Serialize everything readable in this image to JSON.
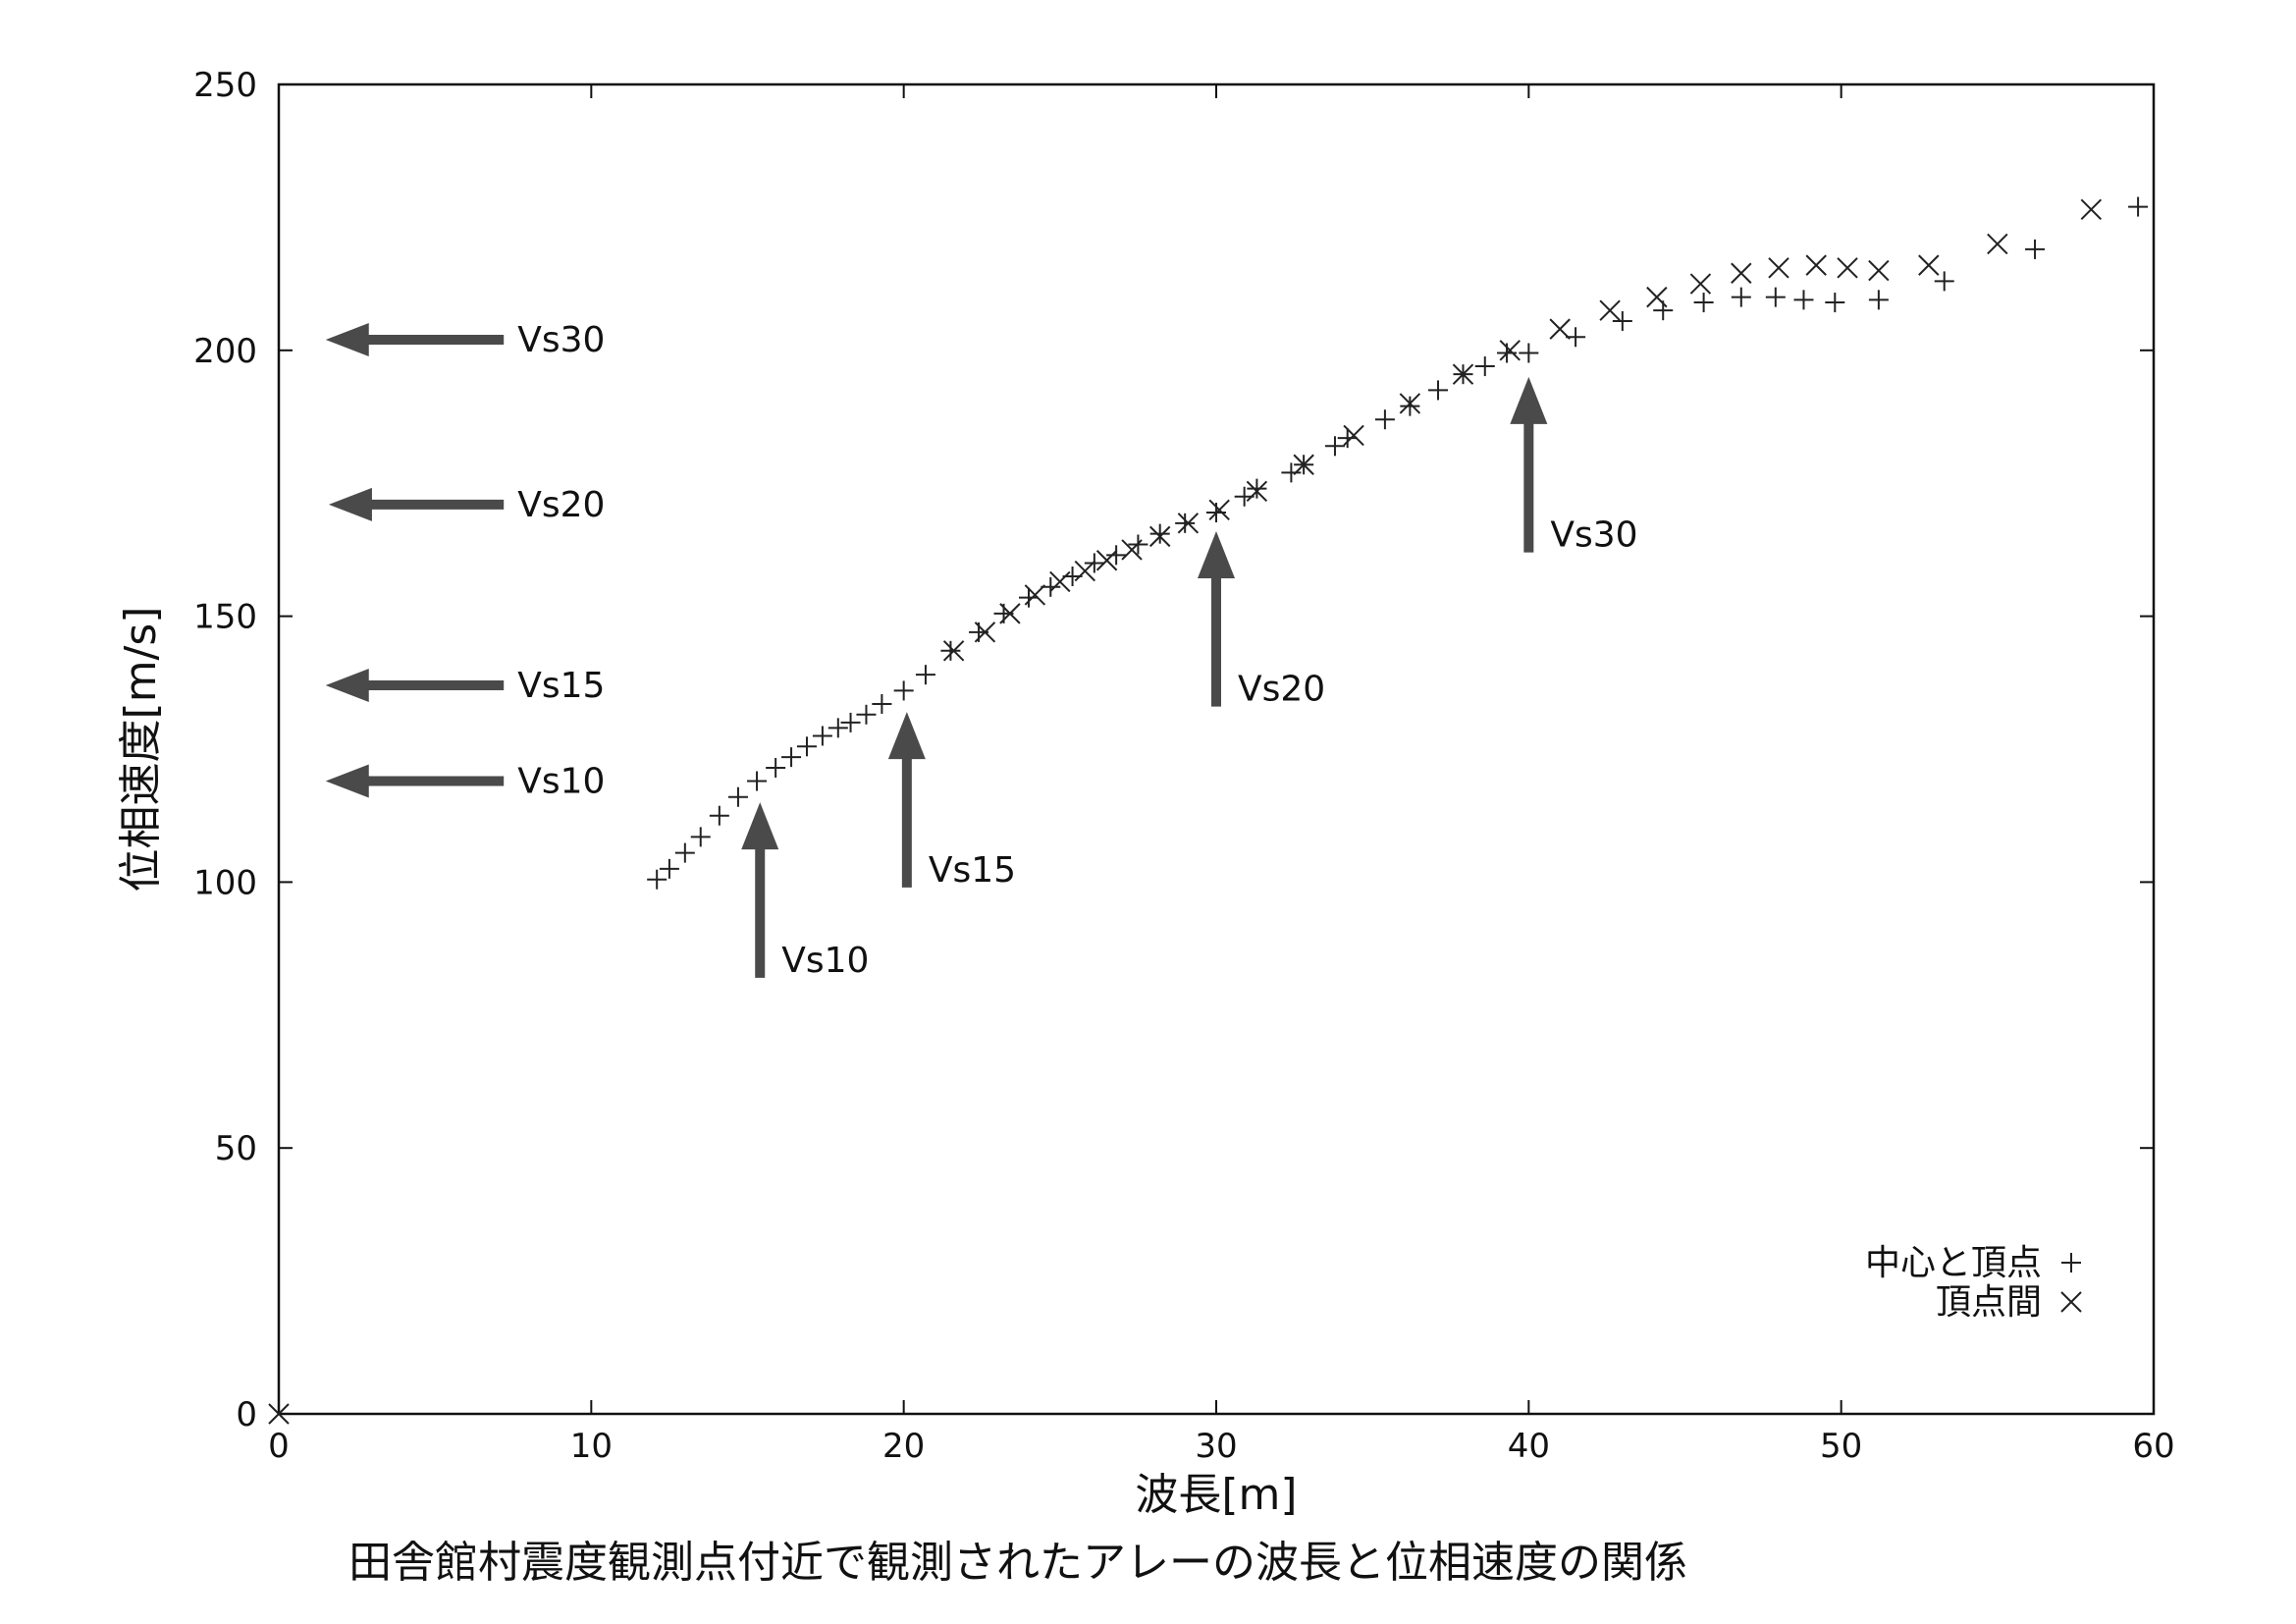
{
  "chart_data": {
    "type": "scatter",
    "xlabel": "波長[m]",
    "ylabel": "位相速度[m/s]",
    "caption": "田舎館村震度観測点付近で観測されたアレーの波長と位相速度の関係",
    "xlim": [
      0,
      60
    ],
    "ylim": [
      0,
      250
    ],
    "x_ticks": [
      "0",
      "10",
      "20",
      "30",
      "40",
      "50",
      "60"
    ],
    "y_ticks": [
      "0",
      "50",
      "100",
      "150",
      "200",
      "250"
    ],
    "grid": false,
    "legend_position": "bottom-right",
    "series": [
      {
        "name": "中心と頂点",
        "marker": "+",
        "points": [
          [
            12.1,
            100.5
          ],
          [
            12.5,
            102.5
          ],
          [
            13.0,
            105.5
          ],
          [
            13.5,
            108.5
          ],
          [
            14.1,
            112.5
          ],
          [
            14.7,
            116.0
          ],
          [
            15.3,
            119.0
          ],
          [
            15.9,
            121.5
          ],
          [
            16.4,
            123.5
          ],
          [
            16.9,
            125.5
          ],
          [
            17.4,
            127.5
          ],
          [
            17.9,
            129.0
          ],
          [
            18.3,
            130.0
          ],
          [
            18.8,
            131.5
          ],
          [
            19.3,
            133.5
          ],
          [
            20.0,
            136.0
          ],
          [
            20.7,
            139.0
          ],
          [
            21.5,
            143.5
          ],
          [
            22.4,
            147.0
          ],
          [
            23.2,
            150.5
          ],
          [
            24.0,
            153.5
          ],
          [
            24.7,
            155.5
          ],
          [
            25.4,
            157.5
          ],
          [
            26.1,
            160.0
          ],
          [
            26.8,
            161.5
          ],
          [
            27.5,
            163.5
          ],
          [
            28.2,
            165.5
          ],
          [
            29.0,
            167.5
          ],
          [
            30.0,
            169.5
          ],
          [
            30.9,
            172.5
          ],
          [
            31.3,
            174.0
          ],
          [
            32.4,
            177.0
          ],
          [
            32.8,
            178.5
          ],
          [
            33.8,
            182.0
          ],
          [
            34.2,
            183.5
          ],
          [
            35.4,
            187.0
          ],
          [
            36.2,
            189.5
          ],
          [
            37.1,
            192.5
          ],
          [
            37.9,
            195.5
          ],
          [
            38.6,
            197.0
          ],
          [
            39.3,
            199.5
          ],
          [
            40.0,
            199.5
          ],
          [
            41.5,
            202.5
          ],
          [
            43.0,
            205.5
          ],
          [
            44.3,
            207.5
          ],
          [
            45.6,
            209.0
          ],
          [
            46.8,
            210.0
          ],
          [
            47.9,
            210.0
          ],
          [
            48.8,
            209.5
          ],
          [
            49.8,
            209.0
          ],
          [
            51.2,
            209.5
          ],
          [
            53.3,
            213.0
          ],
          [
            56.2,
            219.0
          ],
          [
            59.5,
            227.0
          ]
        ]
      },
      {
        "name": "頂点間",
        "marker": "x",
        "points": [
          [
            0.0,
            0.0
          ],
          [
            21.6,
            143.5
          ],
          [
            22.6,
            147.0
          ],
          [
            23.4,
            150.5
          ],
          [
            24.2,
            154.0
          ],
          [
            25.0,
            156.5
          ],
          [
            25.8,
            158.5
          ],
          [
            26.5,
            160.5
          ],
          [
            27.3,
            162.5
          ],
          [
            28.2,
            165.0
          ],
          [
            29.1,
            167.5
          ],
          [
            30.1,
            170.0
          ],
          [
            31.3,
            173.5
          ],
          [
            32.8,
            178.5
          ],
          [
            34.4,
            184.0
          ],
          [
            36.2,
            190.0
          ],
          [
            37.9,
            195.5
          ],
          [
            39.4,
            200.0
          ],
          [
            41.0,
            204.0
          ],
          [
            42.6,
            207.5
          ],
          [
            44.1,
            210.0
          ],
          [
            45.5,
            212.5
          ],
          [
            46.8,
            214.5
          ],
          [
            48.0,
            215.5
          ],
          [
            49.2,
            216.0
          ],
          [
            50.2,
            215.5
          ],
          [
            51.2,
            215.0
          ],
          [
            52.8,
            216.0
          ],
          [
            55.0,
            220.0
          ],
          [
            58.0,
            226.5
          ]
        ]
      }
    ],
    "annotations": {
      "horizontal_arrows": [
        {
          "label": "Vs30",
          "y": 202.0,
          "x_tail": 7.2,
          "x_head": 1.5
        },
        {
          "label": "Vs20",
          "y": 171.0,
          "x_tail": 7.2,
          "x_head": 1.6
        },
        {
          "label": "Vs15",
          "y": 137.0,
          "x_tail": 7.2,
          "x_head": 1.5
        },
        {
          "label": "Vs10",
          "y": 119.0,
          "x_tail": 7.2,
          "x_head": 1.5
        }
      ],
      "vertical_arrows": [
        {
          "label": "Vs10",
          "x": 15.4,
          "y_tail": 82.0,
          "y_head": 115.0
        },
        {
          "label": "Vs15",
          "x": 20.1,
          "y_tail": 99.0,
          "y_head": 132.0
        },
        {
          "label": "Vs20",
          "x": 30.0,
          "y_tail": 133.0,
          "y_head": 166.0
        },
        {
          "label": "Vs30",
          "x": 40.0,
          "y_tail": 162.0,
          "y_head": 195.0
        }
      ]
    }
  }
}
